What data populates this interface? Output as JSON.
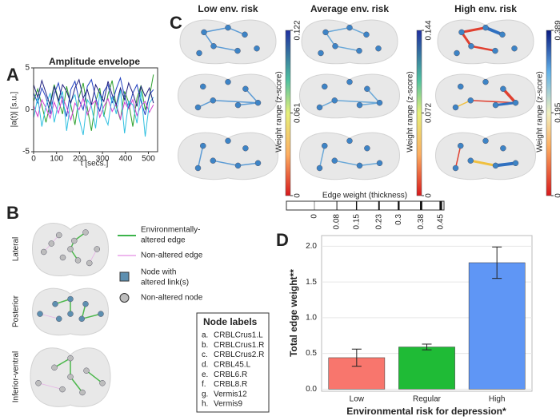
{
  "panel_labels": [
    "A",
    "B",
    "C",
    "D"
  ],
  "legend_b": {
    "altered_edge": [
      "Environmentally-",
      "altered edge"
    ],
    "non_altered_edge": "Non-altered edge",
    "altered_node": [
      "Node with",
      "altered link(s)"
    ],
    "non_altered_node": "Non-altered node"
  },
  "view_labels": [
    "Lateral",
    "Posterior",
    "Inferior-ventral"
  ],
  "node_labels": {
    "title": "Node labels",
    "items": [
      {
        "letter": "a.",
        "name": "CRBLCrus1.L"
      },
      {
        "letter": "b.",
        "name": "CRBLCrus1.R"
      },
      {
        "letter": "c.",
        "name": "CRBLCrus2.R"
      },
      {
        "letter": "d.",
        "name": "CRBL45.L"
      },
      {
        "letter": "e.",
        "name": "CRBL6.R"
      },
      {
        "letter": "f.",
        "name": "CRBL8.R"
      },
      {
        "letter": "g.",
        "name": "Vermis12"
      },
      {
        "letter": "h.",
        "name": "Vermis9"
      }
    ]
  },
  "risk_titles": [
    "Low env. risk",
    "Average env. risk",
    "High env. risk"
  ],
  "colorbars": [
    {
      "label": "Weight range (z-score)",
      "lim": [
        0,
        0.122
      ],
      "ticks": [
        0,
        0.061,
        0.122
      ]
    },
    {
      "label": "Weight range (z-score)",
      "lim": [
        0,
        0.144
      ],
      "ticks": [
        0,
        0.072,
        0.144
      ]
    },
    {
      "label": "Weight range (z-score)",
      "lim": [
        0,
        0.389
      ],
      "ticks": [
        0,
        0.195,
        0.389
      ]
    }
  ],
  "edge_weight": {
    "title": "Edge weight (thickness)",
    "lim": [
      0,
      0.45
    ],
    "ticks": [
      0,
      0.08,
      0.15,
      0.23,
      0.3,
      0.38,
      0.45
    ]
  },
  "chart_data": [
    {
      "type": "line",
      "title": "Amplitude envelope",
      "xlabel": "t [secs.]",
      "ylabel": "|a(t)| [s.u.]",
      "xlim": [
        0,
        540
      ],
      "ylim": [
        -5,
        5
      ],
      "xticks": [
        0,
        100,
        200,
        300,
        400,
        500
      ],
      "yticks": [
        -5,
        0,
        5
      ],
      "x": [
        0,
        18,
        36,
        54,
        72,
        90,
        108,
        126,
        144,
        162,
        180,
        198,
        216,
        234,
        252,
        270,
        288,
        306,
        324,
        342,
        360,
        378,
        396,
        414,
        432,
        450,
        468,
        486,
        504,
        522
      ],
      "series": [
        {
          "color": "#2ca02c",
          "values": [
            1.0,
            2.5,
            0.5,
            -1.5,
            0.8,
            3.0,
            1.2,
            -0.5,
            2.8,
            0.6,
            -1.8,
            1.5,
            3.2,
            0.2,
            -2.5,
            1.0,
            2.6,
            -0.8,
            1.8,
            3.5,
            0.4,
            -1.2,
            2.2,
            0.9,
            -2.0,
            1.4,
            2.9,
            0.0,
            1.5,
            4.2
          ]
        },
        {
          "color": "#2040c0",
          "values": [
            2.0,
            0.8,
            2.6,
            1.5,
            -0.5,
            1.9,
            3.2,
            1.0,
            -0.8,
            2.4,
            3.4,
            1.2,
            0.0,
            2.8,
            3.6,
            1.5,
            -0.2,
            2.2,
            3.0,
            0.8,
            2.5,
            3.8,
            1.6,
            0.2,
            2.0,
            3.0,
            1.0,
            -0.6,
            1.8,
            2.4
          ]
        },
        {
          "color": "#d040d0",
          "values": [
            0.5,
            -0.8,
            1.2,
            0.2,
            -1.0,
            0.9,
            -0.4,
            1.5,
            0.3,
            -1.2,
            0.8,
            0.0,
            1.4,
            -0.6,
            0.6,
            1.1,
            -0.9,
            0.4,
            1.3,
            -0.2,
            0.7,
            -1.1,
            0.9,
            0.1,
            1.2,
            -0.7,
            0.5,
            1.0,
            -0.3,
            0.6
          ]
        },
        {
          "color": "#30c0e0",
          "values": [
            -1.0,
            1.5,
            -2.0,
            0.5,
            2.0,
            -1.5,
            0.8,
            2.2,
            -2.5,
            1.0,
            1.8,
            -1.0,
            -3.0,
            1.2,
            0.4,
            -2.2,
            2.0,
            -0.6,
            -1.8,
            1.6,
            -0.5,
            2.4,
            -2.8,
            1.0,
            0.6,
            -1.6,
            2.2,
            -3.2,
            0.8,
            1.5
          ]
        },
        {
          "color": "#202080",
          "values": [
            3.0,
            1.5,
            3.5,
            2.0,
            0.5,
            2.8,
            1.0,
            3.0,
            2.2,
            0.8,
            2.6,
            3.6,
            1.4,
            2.4,
            0.6,
            3.0,
            2.0,
            1.0,
            3.4,
            1.8,
            0.6,
            2.6,
            1.2,
            3.2,
            2.0,
            0.4,
            2.8,
            1.6,
            2.6,
            0.8
          ]
        }
      ]
    },
    {
      "type": "bar",
      "xlabel": "Environmental risk for depression*",
      "ylabel": "Total edge weight**",
      "categories": [
        "Low",
        "Regular",
        "High"
      ],
      "values": [
        0.44,
        0.59,
        1.77
      ],
      "errors": [
        0.12,
        0.04,
        0.22
      ],
      "colors": [
        "#f8766d",
        "#1fbb36",
        "#5f96f5"
      ],
      "ylim": [
        -0.03,
        2.15
      ],
      "grid": true,
      "yticks": [
        {
          "value": 0,
          "label": "0.0"
        },
        {
          "value": 0.5,
          "label": "0.5"
        },
        {
          "value": 1,
          "label": "1.0"
        },
        {
          "value": 1.5,
          "label": "1.5"
        },
        {
          "value": 2,
          "label": "2.0"
        }
      ]
    }
  ]
}
